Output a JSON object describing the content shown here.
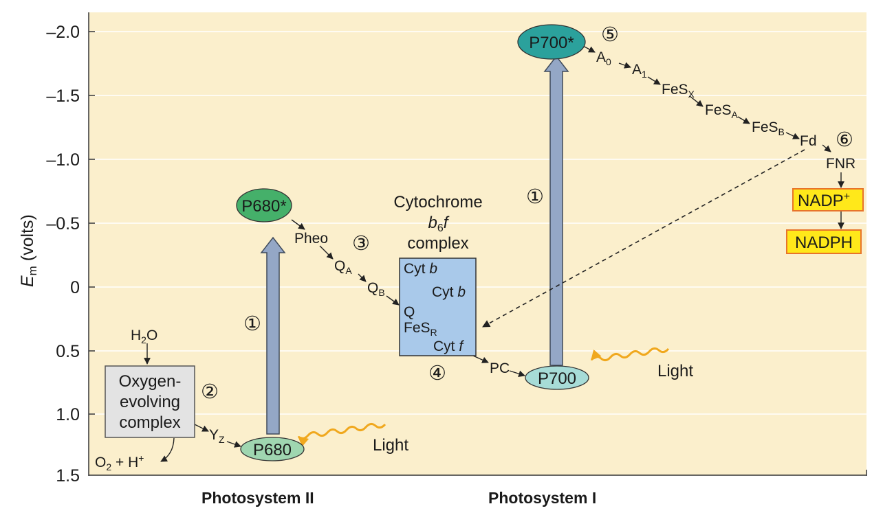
{
  "axis": {
    "ylabel_main": "E",
    "ylabel_sub": "m",
    "ylabel_rest": " (volts)",
    "ticks": [
      "–2.0",
      "–1.5",
      "–1.0",
      "–0.5",
      "0",
      "0.5",
      "1.0",
      "1.5"
    ],
    "tick_values": [
      -2.0,
      -1.5,
      -1.0,
      -0.5,
      0,
      0.5,
      1.0,
      1.5
    ],
    "range": [
      -2.0,
      1.5
    ]
  },
  "bottom_labels": {
    "ps2": "Photosystem II",
    "ps1": "Photosystem I"
  },
  "colors": {
    "background": "#fbefcc",
    "gridline": "#ffffff",
    "arrow_fill": "#94a7c6",
    "arrow_stroke": "#3f4a5a",
    "p680": "#9fd6b0",
    "p680_star": "#45b06a",
    "p700": "#a7dcd7",
    "p700_star": "#2ba19c",
    "cyt_box": "#a9c9ea",
    "oec_box": "#e3e3e3",
    "nadp": "#ffe81a",
    "nadp_border": "#e8742a",
    "light": "#f0a81e"
  },
  "ps2": {
    "p680": "P680",
    "p680_star": "P680*",
    "pheo": "Pheo",
    "qa": {
      "main": "Q",
      "sub": "A"
    },
    "qb": {
      "main": "Q",
      "sub": "B"
    },
    "yz": {
      "main": "Y",
      "sub": "Z"
    },
    "h2o": {
      "a": "H",
      "sub": "2",
      "b": "O"
    },
    "o2": {
      "a": "O",
      "sub": "2",
      "b": " + H",
      "sup": "+"
    },
    "oec_lines": [
      "Oxygen-",
      "evolving",
      "complex"
    ],
    "light": "Light"
  },
  "cytb6f": {
    "title_lines": [
      "Cytochrome",
      "complex"
    ],
    "b6f": {
      "b": "b",
      "sub": "6",
      "f": "f"
    },
    "cyt_b1": {
      "a": "Cyt ",
      "i": "b"
    },
    "cyt_b2": {
      "a": "Cyt ",
      "i": "b"
    },
    "q": "Q",
    "fesr": {
      "main": "FeS",
      "sub": "R"
    },
    "cyt_f": {
      "a": "Cyt ",
      "i": "f"
    }
  },
  "ps1": {
    "p700": "P700",
    "p700_star": "P700*",
    "pc": "PC",
    "a0": {
      "main": "A",
      "sub": "0"
    },
    "a1": {
      "main": "A",
      "sub": "1"
    },
    "fesx": {
      "main": "FeS",
      "sub": "X"
    },
    "fesa": {
      "main": "FeS",
      "sub": "A"
    },
    "fesb": {
      "main": "FeS",
      "sub": "B"
    },
    "fd": "Fd",
    "fnr": "FNR",
    "nadp": {
      "main": "NADP",
      "sup": "+"
    },
    "nadph": "NADPH",
    "light": "Light"
  },
  "steps": {
    "s1a": "①",
    "s1b": "①",
    "s2": "②",
    "s3": "③",
    "s4": "④",
    "s5": "⑤",
    "s6": "⑥"
  }
}
